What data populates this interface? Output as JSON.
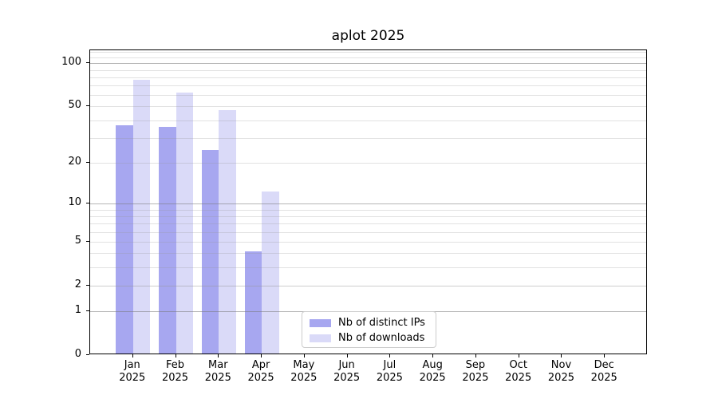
{
  "chart_data": {
    "type": "bar",
    "title": "aplot 2025",
    "year_label": "2025",
    "yscale": "log1p",
    "grid": true,
    "categories": [
      "Jan",
      "Feb",
      "Mar",
      "Apr",
      "May",
      "Jun",
      "Jul",
      "Aug",
      "Sep",
      "Oct",
      "Nov",
      "Dec"
    ],
    "series": [
      {
        "name": "Nb of distinct IPs",
        "key": "ips",
        "values": [
          36,
          35,
          24,
          4,
          0,
          0,
          0,
          0,
          0,
          0,
          0,
          0
        ]
      },
      {
        "name": "Nb of downloads",
        "key": "downloads",
        "values": [
          75,
          61,
          46,
          12,
          0,
          0,
          0,
          0,
          0,
          0,
          0,
          0
        ]
      }
    ],
    "yticks": [
      0,
      1,
      2,
      5,
      10,
      20,
      50,
      100
    ],
    "grid_major": [
      1,
      10,
      100
    ],
    "grid_minor": [
      2,
      3,
      4,
      6,
      7,
      8,
      9,
      30,
      40,
      60,
      70,
      80,
      90,
      110,
      120
    ],
    "ymax": 123,
    "xlabel": "",
    "ylabel": "",
    "legend_position": "lower-center"
  },
  "colors": {
    "ips": "#a7a7f0",
    "downloads": "#dadaf8",
    "grid_major": "rgba(120,120,120,0.55)",
    "grid_minor": "rgba(150,150,150,0.28)",
    "axis": "#000000",
    "text": "#000000",
    "legend_border": "#cccccc"
  }
}
